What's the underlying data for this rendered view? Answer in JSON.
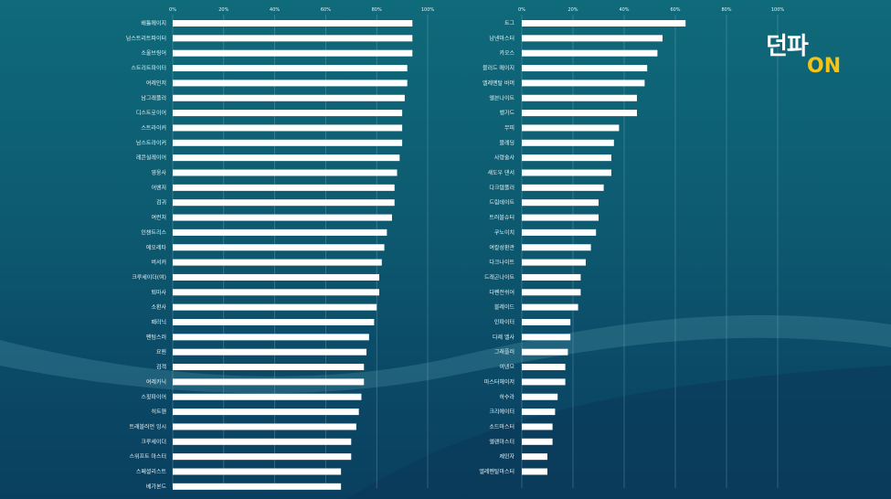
{
  "logo": {
    "text_ko": "던파",
    "text_on": "ON",
    "accent": "#f5c419"
  },
  "colors": {
    "bar": "#ffffff",
    "text": "#e8f2f6",
    "grid": "#9ec6d4"
  },
  "chart_data": [
    {
      "type": "bar",
      "orientation": "horizontal",
      "xlim": [
        0,
        100
      ],
      "ticks": [
        "0%",
        "20%",
        "40%",
        "60%",
        "80%",
        "100%"
      ],
      "categories": [
        "배틀메이지",
        "남스트리트파이터",
        "소울브링어",
        "스트리트파이터",
        "여레인저",
        "남그래플러",
        "디스트로이어",
        "스트라이커",
        "남스트라이커",
        "레콘실레이어",
        "영웅사",
        "어벤저",
        "검귀",
        "여런처",
        "인챈트리스",
        "에오레타",
        "버서커",
        "크루세이더(여)",
        "퇴마사",
        "소환사",
        "패러닉",
        "팬텀스러",
        "요원",
        "검객",
        "여레카닉",
        "스핏파이어",
        "히트맨",
        "트래블러언 잉시",
        "크루세이더",
        "스위프트 마스터",
        "스페셜리스트",
        "베가본드"
      ],
      "values": [
        94,
        94,
        94,
        92,
        92,
        91,
        90,
        90,
        90,
        89,
        88,
        87,
        87,
        86,
        84,
        83,
        82,
        81,
        81,
        80,
        79,
        77,
        76,
        75,
        75,
        74,
        73,
        72,
        70,
        70,
        66,
        66
      ]
    },
    {
      "type": "bar",
      "orientation": "horizontal",
      "xlim": [
        0,
        100
      ],
      "ticks": [
        "0%",
        "20%",
        "40%",
        "60%",
        "80%",
        "100%"
      ],
      "categories": [
        "트그",
        "남넨마스터",
        "카오스",
        "블러드 메이지",
        "엘레멘탈 바머",
        "엘븐나이트",
        "뱅가드",
        "무피",
        "블레딩",
        "사령술사",
        "섀도우 댄서",
        "다크템플러",
        "드림데이트",
        "트러블슈터",
        "쿠노이치",
        "여칼성환관",
        "다크나이트",
        "드래곤나이트",
        "다펜전쉬어",
        "블레이드",
        "인파이터",
        "다제 엘사",
        "그래플러",
        "여넨므",
        "마스터헤이저",
        "하수라",
        "크리에이터",
        "소드마스터",
        "엘렌마스터",
        "제인자",
        "엘레멘탈마스터"
      ],
      "values": [
        64,
        55,
        53,
        49,
        48,
        45,
        45,
        38,
        36,
        35,
        35,
        32,
        30,
        30,
        29,
        27,
        25,
        23,
        23,
        22,
        19,
        19,
        18,
        17,
        17,
        14,
        13,
        12,
        12,
        10,
        10
      ]
    }
  ]
}
